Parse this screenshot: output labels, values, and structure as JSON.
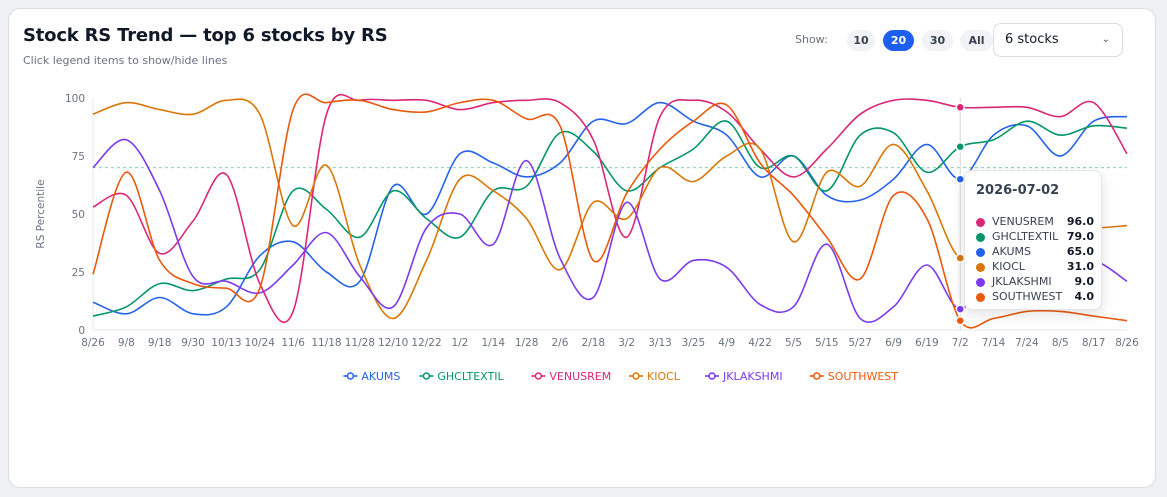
{
  "header": {
    "title": "Stock RS Trend — top 6 stocks by RS",
    "subtitle": "Click legend items to show/hide lines"
  },
  "controls": {
    "show_label": "Show:",
    "options": [
      "10",
      "20",
      "30",
      "All"
    ],
    "active": "20",
    "select_value": "6 stocks"
  },
  "tooltip": {
    "date": "2026-07-02",
    "rows": [
      {
        "name": "VENUSREM",
        "value": "96.0",
        "color": "#db2777"
      },
      {
        "name": "GHCLTEXTIL",
        "value": "79.0",
        "color": "#059669"
      },
      {
        "name": "AKUMS",
        "value": "65.0",
        "color": "#2563eb"
      },
      {
        "name": "KIOCL",
        "value": "31.0",
        "color": "#d97706"
      },
      {
        "name": "JKLAKSHMI",
        "value": "9.0",
        "color": "#7c3aed"
      },
      {
        "name": "SOUTHWEST",
        "value": "4.0",
        "color": "#ea580c"
      }
    ]
  },
  "chart_data": {
    "type": "line",
    "ylabel": "RS Percentile",
    "xlabel": "",
    "ylim": [
      0,
      100
    ],
    "yticks": [
      0,
      25,
      50,
      75,
      100
    ],
    "reference_line": 70,
    "grid": false,
    "legend_position": "bottom",
    "hover_x": "7/2",
    "x": [
      "8/26",
      "9/8",
      "9/18",
      "9/30",
      "10/13",
      "10/24",
      "11/6",
      "11/18",
      "11/28",
      "12/10",
      "12/22",
      "1/2",
      "1/14",
      "1/28",
      "2/6",
      "2/18",
      "3/2",
      "3/13",
      "3/25",
      "4/9",
      "4/22",
      "5/5",
      "5/15",
      "5/27",
      "6/9",
      "6/19",
      "7/2",
      "7/14",
      "7/24",
      "8/5",
      "8/17",
      "8/26"
    ],
    "series": [
      {
        "name": "AKUMS",
        "color": "#2563eb",
        "values": [
          12,
          7,
          14,
          7,
          10,
          32,
          38,
          25,
          21,
          62,
          50,
          76,
          72,
          66,
          72,
          90,
          89,
          98,
          90,
          84,
          66,
          75,
          58,
          56,
          65,
          80,
          65,
          84,
          88,
          75,
          90,
          92
        ]
      },
      {
        "name": "GHCLTEXTIL",
        "color": "#059669",
        "values": [
          6,
          10,
          20,
          17,
          22,
          26,
          60,
          52,
          40,
          60,
          48,
          40,
          60,
          62,
          85,
          77,
          60,
          70,
          78,
          90,
          70,
          75,
          60,
          84,
          85,
          68,
          79,
          82,
          90,
          84,
          88,
          87
        ]
      },
      {
        "name": "VENUSREM",
        "color": "#db2777",
        "values": [
          53,
          58,
          33,
          47,
          67,
          20,
          8,
          93,
          99,
          99,
          99,
          95,
          98,
          99,
          98,
          82,
          40,
          92,
          99,
          94,
          78,
          66,
          78,
          93,
          99,
          99,
          96,
          96,
          96,
          92,
          98,
          76
        ]
      },
      {
        "name": "KIOCL",
        "color": "#d97706",
        "values": [
          93,
          98,
          95,
          93,
          99,
          93,
          45,
          71,
          28,
          5,
          30,
          65,
          60,
          48,
          26,
          55,
          48,
          70,
          64,
          75,
          78,
          38,
          68,
          62,
          80,
          60,
          31,
          43,
          45,
          45,
          44,
          45
        ]
      },
      {
        "name": "JKLAKSHMI",
        "color": "#7c3aed",
        "values": [
          70,
          82,
          60,
          23,
          21,
          16,
          28,
          42,
          23,
          10,
          44,
          50,
          37,
          73,
          31,
          14,
          55,
          22,
          30,
          27,
          11,
          10,
          37,
          5,
          10,
          28,
          9,
          28,
          32,
          28,
          30,
          21
        ]
      },
      {
        "name": "SOUTHWEST",
        "color": "#ea580c",
        "values": [
          24,
          68,
          30,
          20,
          18,
          18,
          95,
          98,
          99,
          95,
          94,
          98,
          99,
          91,
          88,
          30,
          59,
          78,
          90,
          97,
          72,
          58,
          40,
          22,
          58,
          48,
          4,
          5,
          8,
          8,
          6,
          4
        ]
      }
    ]
  }
}
